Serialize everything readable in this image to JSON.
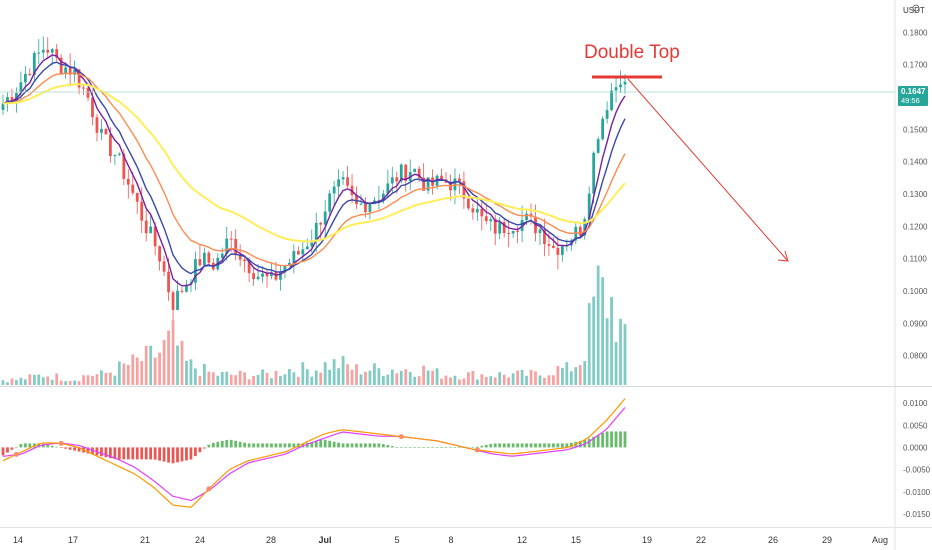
{
  "chart_data": {
    "type": "candlestick",
    "currency_label": "USDT",
    "annotation": "Double Top",
    "price_label": "0.1647",
    "countdown_label": "49:56",
    "price_axis": {
      "range": [
        0.074,
        0.1875
      ],
      "ticks": [
        "0.1800",
        "0.1700",
        "0.1600",
        "0.1500",
        "0.1400",
        "0.1300",
        "0.1200",
        "0.1100",
        "0.1000",
        "0.0900",
        "0.0800"
      ]
    },
    "macd_axis": {
      "range": [
        -0.0175,
        0.0125
      ],
      "ticks": [
        "0.0100",
        "0.0050",
        "0.0000",
        "-0.0050",
        "-0.0100",
        "-0.0150"
      ]
    },
    "x_axis": {
      "labels": [
        "14",
        "17",
        "21",
        "24",
        "28",
        "Jul",
        "5",
        "8",
        "12",
        "15",
        "19",
        "22",
        "26",
        "29",
        "Aug"
      ]
    },
    "price_anchors": [
      0.158,
      0.163,
      0.17,
      0.176,
      0.17,
      0.168,
      0.16,
      0.147,
      0.142,
      0.132,
      0.121,
      0.112,
      0.096,
      0.103,
      0.11,
      0.108,
      0.116,
      0.11,
      0.105,
      0.103,
      0.108,
      0.112,
      0.118,
      0.128,
      0.133,
      0.126,
      0.128,
      0.131,
      0.136,
      0.138,
      0.132,
      0.134,
      0.133,
      0.128,
      0.121,
      0.119,
      0.121,
      0.122,
      0.119,
      0.113,
      0.116,
      0.12,
      0.148,
      0.162,
      0.1647
    ],
    "volume_anchors": [
      1,
      1,
      1.5,
      2,
      1.5,
      1,
      2,
      2,
      3,
      4,
      5,
      6,
      9,
      4,
      3,
      2,
      2,
      2,
      2,
      2,
      3,
      3,
      3,
      4,
      4,
      3,
      3,
      3,
      3,
      3,
      3,
      2,
      2,
      2,
      2,
      2,
      2,
      2,
      2,
      3,
      3,
      5,
      18,
      16,
      8
    ],
    "macd_anchors": [
      -0.003,
      -0.001,
      0.001,
      0.001,
      0.0,
      -0.002,
      -0.004,
      -0.006,
      -0.009,
      -0.013,
      -0.0135,
      -0.009,
      -0.005,
      -0.003,
      -0.002,
      -0.001,
      0.001,
      0.003,
      0.004,
      0.0035,
      0.003,
      0.0025,
      0.002,
      0.0015,
      0.0005,
      -0.0005,
      -0.001,
      -0.0015,
      -0.001,
      -0.0005,
      0.0,
      0.002,
      0.006,
      0.011
    ],
    "signal_anchors": [
      -0.002,
      -0.0015,
      0.0005,
      0.001,
      0.0005,
      -0.001,
      -0.0025,
      -0.0045,
      -0.0075,
      -0.011,
      -0.012,
      -0.0095,
      -0.006,
      -0.0035,
      -0.0025,
      -0.0015,
      0.0005,
      0.002,
      0.0035,
      0.003,
      0.0025,
      0.0025,
      0.002,
      0.0015,
      0.0005,
      -0.0005,
      -0.0015,
      -0.002,
      -0.0015,
      -0.001,
      -0.0005,
      0.001,
      0.004,
      0.009
    ]
  }
}
